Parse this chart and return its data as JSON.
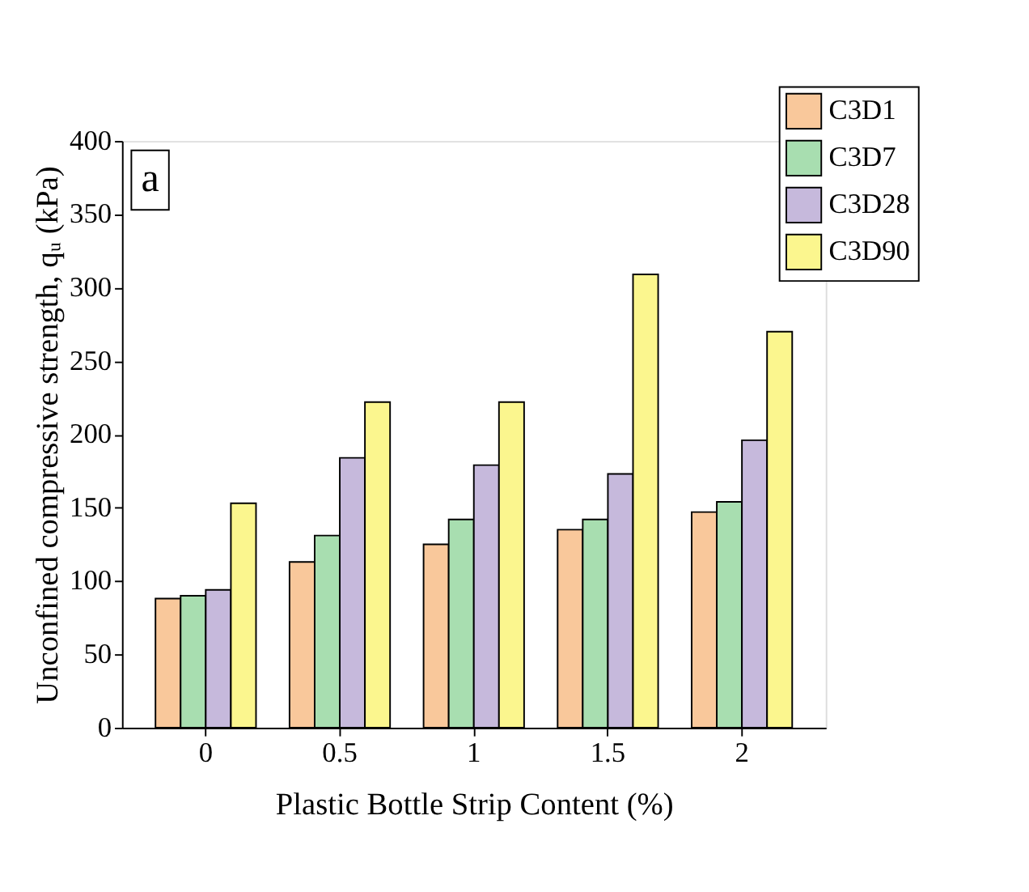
{
  "chart_data": {
    "type": "bar",
    "xlabel": "Plastic Bottle Strip Content (%)",
    "ylabel": "Unconfined compressive strength, qᵤ (kPa)",
    "categories": [
      "0",
      "0.5",
      "1",
      "1.5",
      "2"
    ],
    "series": [
      {
        "name": "C3D1",
        "color": "#f9c89b",
        "values": [
          88,
          113,
          125,
          135,
          147
        ]
      },
      {
        "name": "C3D7",
        "color": "#a8deb0",
        "values": [
          90,
          131,
          142,
          142,
          154
        ]
      },
      {
        "name": "C3D28",
        "color": "#c6b9dc",
        "values": [
          94,
          184,
          179,
          173,
          196
        ]
      },
      {
        "name": "C3D90",
        "color": "#fbf68e",
        "values": [
          153,
          222,
          222,
          309,
          270
        ]
      }
    ],
    "ylim": [
      0,
      400
    ],
    "yticks": [
      0,
      50,
      100,
      150,
      200,
      250,
      300,
      350,
      400
    ],
    "grid": false,
    "legend": "top right",
    "annotations": [
      "a"
    ]
  }
}
